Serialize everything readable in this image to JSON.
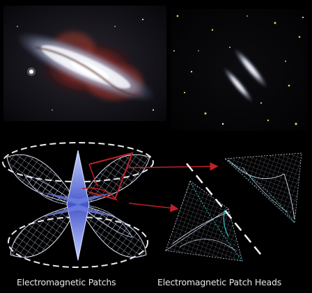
{
  "captions": {
    "left": "Electromagnetic Patchs",
    "right": "Electromagnetic Patch Heads"
  },
  "icons": {
    "galaxy_top_left": "galaxy-m82-image",
    "galaxy_top_right": "twin-edge-on-galaxies-image",
    "diagram_left": "electromagnetic-patch-lattice-diagram",
    "diagram_right": "patch-head-tetrahedra-diagram"
  },
  "colors": {
    "background": "#000000",
    "arrow": "#c0202a",
    "mesh": "#dfe6ff",
    "cyan_accent": "#2ec6c8",
    "core_blue": "#6f7fe0"
  }
}
